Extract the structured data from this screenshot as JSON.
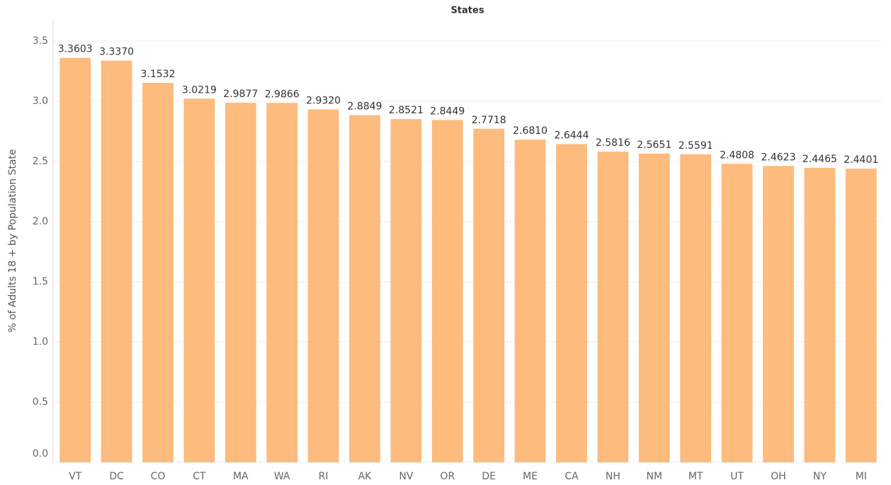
{
  "chart_data": {
    "type": "bar",
    "title": "States",
    "y_label": "% of Adults 18 + by Population State",
    "categories": [
      "VT",
      "DC",
      "CO",
      "CT",
      "MA",
      "WA",
      "RI",
      "AK",
      "NV",
      "OR",
      "DE",
      "ME",
      "CA",
      "NH",
      "NM",
      "MT",
      "UT",
      "OH",
      "NY",
      "MI"
    ],
    "values": [
      3.3603,
      3.337,
      3.1532,
      3.0219,
      2.9877,
      2.9866,
      2.932,
      2.8849,
      2.8521,
      2.8449,
      2.7718,
      2.681,
      2.6444,
      2.5816,
      2.5651,
      2.5591,
      2.4808,
      2.4623,
      2.4465,
      2.4401
    ],
    "value_labels": [
      "3.3603",
      "3.3370",
      "3.1532",
      "3.0219",
      "2.9877",
      "2.9866",
      "2.9320",
      "2.8849",
      "2.8521",
      "2.8449",
      "2.7718",
      "2.6810",
      "2.6444",
      "2.5816",
      "2.5651",
      "2.5591",
      "2.4808",
      "2.4623",
      "2.4465",
      "2.4401"
    ],
    "color": "#fdbb7d",
    "ylim": [
      0,
      3.6
    ],
    "yticks": [
      {
        "value": 0,
        "label": "0.0"
      },
      0.5,
      {
        "value": 1,
        "label": "1.0"
      },
      1.5,
      {
        "value": 2,
        "label": "2.0"
      },
      2.5,
      {
        "value": 3,
        "label": "3.0"
      },
      3.5
    ],
    "grid": true
  }
}
